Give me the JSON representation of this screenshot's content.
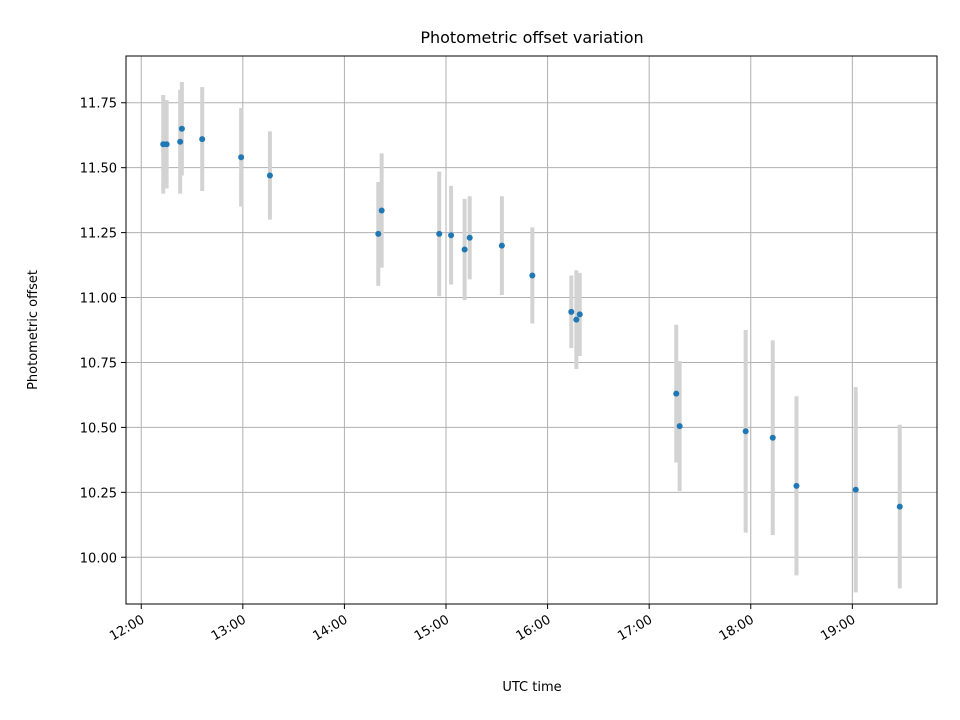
{
  "chart_data": {
    "type": "scatter",
    "title": "Photometric offset variation",
    "xlabel": "UTC time",
    "ylabel": "Photometric offset",
    "xlim": [
      "11:51",
      "19:50"
    ],
    "ylim": [
      9.82,
      11.93
    ],
    "grid": true,
    "x_ticks": [
      "12:00",
      "13:00",
      "14:00",
      "15:00",
      "16:00",
      "17:00",
      "18:00",
      "19:00"
    ],
    "y_ticks": [
      "10.00",
      "10.25",
      "10.50",
      "10.75",
      "11.00",
      "11.25",
      "11.50",
      "11.75"
    ],
    "series": [
      {
        "marker_color": "#1f77b4",
        "errorbar_color": "#d3d3d3",
        "points": [
          {
            "x": "12:13",
            "y": 11.59,
            "yerr": 0.19
          },
          {
            "x": "12:15",
            "y": 11.59,
            "yerr": 0.17
          },
          {
            "x": "12:23",
            "y": 11.6,
            "yerr": 0.2
          },
          {
            "x": "12:24",
            "y": 11.65,
            "yerr": 0.18
          },
          {
            "x": "12:36",
            "y": 11.61,
            "yerr": 0.2
          },
          {
            "x": "12:59",
            "y": 11.54,
            "yerr": 0.19
          },
          {
            "x": "13:16",
            "y": 11.47,
            "yerr": 0.17
          },
          {
            "x": "14:20",
            "y": 11.245,
            "yerr": 0.2
          },
          {
            "x": "14:22",
            "y": 11.335,
            "yerr": 0.22
          },
          {
            "x": "14:56",
            "y": 11.245,
            "yerr": 0.24
          },
          {
            "x": "15:03",
            "y": 11.24,
            "yerr": 0.19
          },
          {
            "x": "15:11",
            "y": 11.185,
            "yerr": 0.195
          },
          {
            "x": "15:14",
            "y": 11.23,
            "yerr": 0.16
          },
          {
            "x": "15:33",
            "y": 11.2,
            "yerr": 0.19
          },
          {
            "x": "15:51",
            "y": 11.085,
            "yerr": 0.185
          },
          {
            "x": "16:14",
            "y": 10.945,
            "yerr": 0.14
          },
          {
            "x": "16:17",
            "y": 10.915,
            "yerr": 0.19
          },
          {
            "x": "16:19",
            "y": 10.935,
            "yerr": 0.16
          },
          {
            "x": "17:16",
            "y": 10.63,
            "yerr": 0.265
          },
          {
            "x": "17:18",
            "y": 10.505,
            "yerr": 0.25
          },
          {
            "x": "17:57",
            "y": 10.485,
            "yerr": 0.39
          },
          {
            "x": "18:13",
            "y": 10.46,
            "yerr": 0.375
          },
          {
            "x": "18:27",
            "y": 10.275,
            "yerr": 0.345
          },
          {
            "x": "19:02",
            "y": 10.26,
            "yerr": 0.395
          },
          {
            "x": "19:28",
            "y": 10.195,
            "yerr": 0.315
          }
        ]
      }
    ]
  }
}
